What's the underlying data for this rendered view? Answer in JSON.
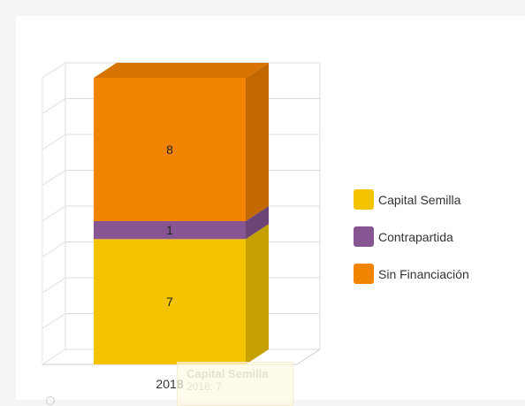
{
  "chart_data": {
    "type": "bar",
    "stacked": true,
    "three_d": true,
    "categories": [
      "2018"
    ],
    "series": [
      {
        "name": "Capital Semilla",
        "values": [
          7
        ],
        "color": "#F3C300",
        "side_color": "#C4A100"
      },
      {
        "name": "Contrapartida",
        "values": [
          1
        ],
        "color": "#875692",
        "side_color": "#6C4476"
      },
      {
        "name": "Sin Financiación",
        "values": [
          8
        ],
        "color": "#F38400",
        "side_color": "#C26A00"
      }
    ],
    "ylim": [
      0,
      16
    ],
    "grid": true,
    "legend_position": "right"
  },
  "tooltip": {
    "title": "Capital Semilla",
    "value": "2018: 7"
  }
}
